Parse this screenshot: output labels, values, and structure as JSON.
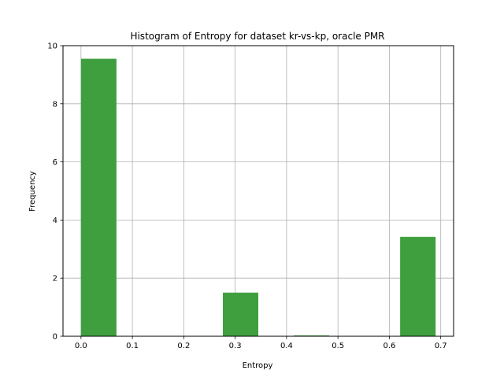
{
  "chart_data": {
    "type": "bar",
    "title": "Histogram of Entropy for dataset kr-vs-kp, oracle PMR",
    "xlabel": "Entropy",
    "ylabel": "Frequency",
    "xlim": [
      -0.035,
      0.725
    ],
    "ylim": [
      0,
      10
    ],
    "grid": true,
    "bar_color": "#3f9f3f",
    "grid_color": "#b0b0b0",
    "xticks": [
      "0.0",
      "0.1",
      "0.2",
      "0.3",
      "0.4",
      "0.5",
      "0.6",
      "0.7"
    ],
    "yticks": [
      "0",
      "2",
      "4",
      "6",
      "8",
      "10"
    ],
    "bins": [
      {
        "x0": 0.0,
        "x1": 0.069,
        "value": 9.55
      },
      {
        "x0": 0.069,
        "x1": 0.138,
        "value": 0
      },
      {
        "x0": 0.138,
        "x1": 0.207,
        "value": 0
      },
      {
        "x0": 0.207,
        "x1": 0.276,
        "value": 0
      },
      {
        "x0": 0.276,
        "x1": 0.345,
        "value": 1.5
      },
      {
        "x0": 0.345,
        "x1": 0.414,
        "value": 0
      },
      {
        "x0": 0.414,
        "x1": 0.483,
        "value": 0.03
      },
      {
        "x0": 0.483,
        "x1": 0.552,
        "value": 0
      },
      {
        "x0": 0.552,
        "x1": 0.621,
        "value": 0
      },
      {
        "x0": 0.621,
        "x1": 0.69,
        "value": 3.42
      }
    ]
  }
}
